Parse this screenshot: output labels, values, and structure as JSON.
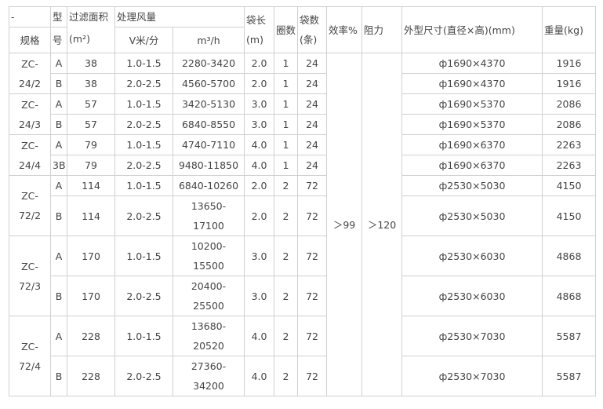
{
  "header": {
    "spec_dash": "-",
    "spec": "规格",
    "type_top": "型",
    "type_bottom": "号",
    "area": "过滤面积",
    "area_unit": "(m²)",
    "airflow": "处理风量",
    "speed": "V米/分",
    "volume": "m³/h",
    "bag_length": "袋长",
    "bag_length_unit": "(m)",
    "rings": "圈数",
    "bags": "袋数",
    "bags_unit": "(条)",
    "efficiency": "效率%",
    "resistance": "阻力",
    "size": "外型尺寸(直径×高)(mm)",
    "weight": "重量(kg)"
  },
  "shared": {
    "efficiency": "＞99",
    "resistance": "＞120"
  },
  "groups": [
    {
      "model": "ZC-\n24/2",
      "rows": [
        {
          "type": "A",
          "area": "38",
          "speed": "1.0-1.5",
          "volume": "2280-3420",
          "length": "2.0",
          "rings": "1",
          "bags": "24",
          "size": "ф1690×4370",
          "weight": "1916"
        },
        {
          "type": "B",
          "area": "38",
          "speed": "2.0-2.5",
          "volume": "4560-5700",
          "length": "2.0",
          "rings": "1",
          "bags": "24",
          "size": "ф1690×4370",
          "weight": "1916"
        }
      ]
    },
    {
      "model": "ZC-\n24/3",
      "rows": [
        {
          "type": "A",
          "area": "57",
          "speed": "1.0-1.5",
          "volume": "3420-5130",
          "length": "3.0",
          "rings": "1",
          "bags": "24",
          "size": "ф1690×5370",
          "weight": "2086"
        },
        {
          "type": "B",
          "area": "57",
          "speed": "2.0-2.5",
          "volume": "6840-8550",
          "length": "3.0",
          "rings": "1",
          "bags": "24",
          "size": "ф1690×5370",
          "weight": "2086"
        }
      ]
    },
    {
      "model": "ZC-\n24/4",
      "rows": [
        {
          "type": "A",
          "area": "79",
          "speed": "1.0-1.5",
          "volume": "4740-7110",
          "length": "4.0",
          "rings": "1",
          "bags": "24",
          "size": "ф1690×6370",
          "weight": "2263"
        },
        {
          "type": "3B",
          "area": "79",
          "speed": "2.0-2.5",
          "volume": "9480-11850",
          "length": "4.0",
          "rings": "1",
          "bags": "24",
          "size": "ф1690×6370",
          "weight": "2263"
        }
      ]
    },
    {
      "model": "ZC-\n72/2",
      "rows": [
        {
          "type": "A",
          "area": "114",
          "speed": "1.0-1.5",
          "volume": "6840-10260",
          "length": "2.0",
          "rings": "2",
          "bags": "72",
          "size": "ф2530×5030",
          "weight": "4150"
        },
        {
          "type": "B",
          "area": "114",
          "speed": "2.0-2.5",
          "volume": "13650-\n17100",
          "length": "2.0",
          "rings": "2",
          "bags": "72",
          "size": "ф2530×5030",
          "weight": "4150"
        }
      ]
    },
    {
      "model": "ZC-\n72/3",
      "rows": [
        {
          "type": "A",
          "area": "170",
          "speed": "1.0-1.5",
          "volume": "10200-\n15500",
          "length": "3.0",
          "rings": "2",
          "bags": "72",
          "size": "ф2530×6030",
          "weight": "4868"
        },
        {
          "type": "B",
          "area": "170",
          "speed": "2.0-2.5",
          "volume": "20400-\n25500",
          "length": "3.0",
          "rings": "2",
          "bags": "72",
          "size": "ф2530×6030",
          "weight": "4868"
        }
      ]
    },
    {
      "model": "ZC-\n72/4",
      "rows": [
        {
          "type": "A",
          "area": "228",
          "speed": "1.0-1.5",
          "volume": "13680-\n20520",
          "length": "4.0",
          "rings": "2",
          "bags": "72",
          "size": "ф2530×7030",
          "weight": "5587"
        },
        {
          "type": "B",
          "area": "228",
          "speed": "2.0-2.5",
          "volume": "27360-\n34200",
          "length": "4.0",
          "rings": "2",
          "bags": "72",
          "size": "ф2530×7030",
          "weight": "5587"
        }
      ]
    }
  ]
}
